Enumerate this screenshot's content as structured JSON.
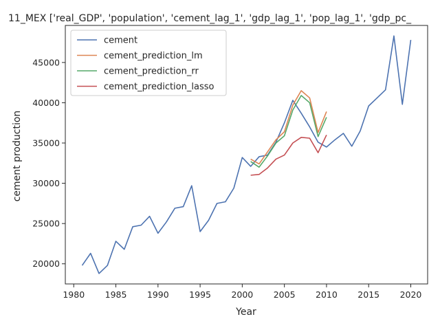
{
  "chart_data": {
    "type": "line",
    "title": "11_MEX ['real_GDP', 'population', 'cement_lag_1', 'gdp_lag_1', 'pop_lag_1', 'gdp_pc_",
    "xlabel": "Year",
    "ylabel": "cement production",
    "xlim": [
      1979,
      2022
    ],
    "ylim": [
      17500,
      49600
    ],
    "xticks": [
      1980,
      1985,
      1990,
      1995,
      2000,
      2005,
      2010,
      2015,
      2020
    ],
    "yticks": [
      20000,
      25000,
      30000,
      35000,
      40000,
      45000
    ],
    "legend_position": "upper-left",
    "grid": false,
    "series": [
      {
        "name": "cement",
        "color": "#4c72b0",
        "x": [
          1981,
          1982,
          1983,
          1984,
          1985,
          1986,
          1987,
          1988,
          1989,
          1990,
          1991,
          1992,
          1993,
          1994,
          1995,
          1996,
          1997,
          1998,
          1999,
          2000,
          2001,
          2002,
          2003,
          2004,
          2005,
          2006,
          2007,
          2008,
          2009,
          2010,
          2011,
          2012,
          2013,
          2014,
          2015,
          2016,
          2017,
          2018,
          2019,
          2020
        ],
        "y": [
          19800,
          21300,
          18800,
          19800,
          22800,
          21800,
          24600,
          24800,
          25900,
          23800,
          25200,
          26900,
          27100,
          29700,
          24000,
          25400,
          27500,
          27700,
          29400,
          33200,
          32100,
          33300,
          33500,
          35100,
          37500,
          40300,
          38700,
          37000,
          35100,
          34500,
          35400,
          36200,
          34600,
          36500,
          39600,
          40600,
          41600,
          48300,
          39800,
          47800
        ]
      },
      {
        "name": "cement_prediction_lm",
        "color": "#dd8452",
        "x": [
          2001,
          2002,
          2003,
          2004,
          2005,
          2006,
          2007,
          2008,
          2009,
          2010
        ],
        "y": [
          33000,
          32400,
          33900,
          35400,
          36400,
          39700,
          41500,
          40600,
          36300,
          38900
        ]
      },
      {
        "name": "cement_prediction_rr",
        "color": "#55a868",
        "x": [
          2001,
          2002,
          2003,
          2004,
          2005,
          2006,
          2007,
          2008,
          2009,
          2010
        ],
        "y": [
          32700,
          32000,
          33400,
          35000,
          35900,
          39100,
          40900,
          40000,
          35800,
          38200
        ]
      },
      {
        "name": "cement_prediction_lasso",
        "color": "#c44e52",
        "x": [
          2001,
          2002,
          2003,
          2004,
          2005,
          2006,
          2007,
          2008,
          2009,
          2010
        ],
        "y": [
          31000,
          31100,
          31900,
          33000,
          33500,
          35000,
          35700,
          35600,
          33800,
          36000
        ]
      }
    ]
  }
}
